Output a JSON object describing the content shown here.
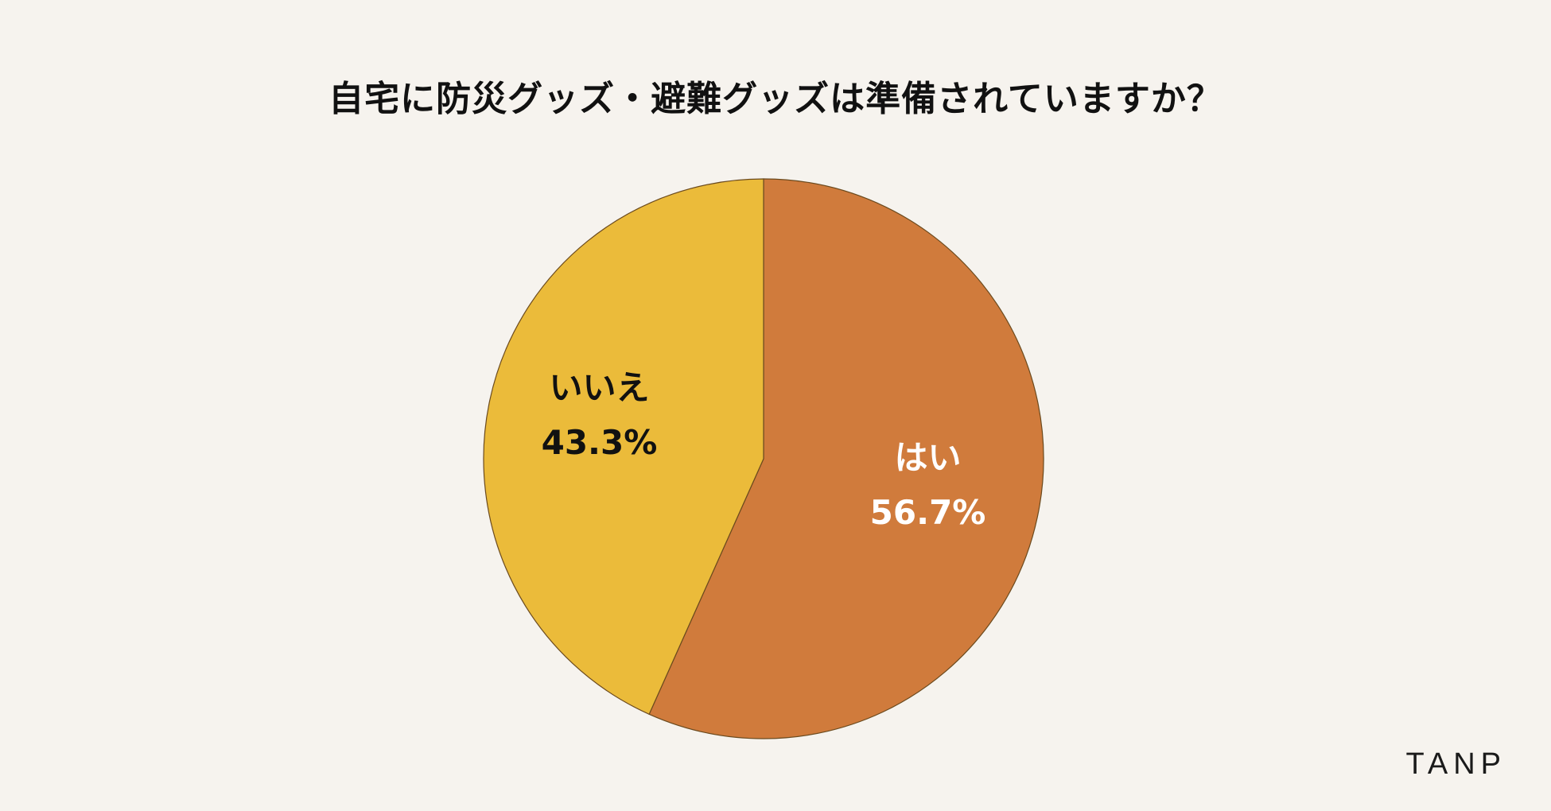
{
  "brand": "TANP",
  "colors": {
    "background": "#F6F3EE",
    "yes": "#D07B3C",
    "no": "#EBBB3A",
    "stroke": "#6B4A1E"
  },
  "chart_data": {
    "type": "pie",
    "title": "自宅に防災グッズ・避難グッズは準備されていますか？",
    "start_angle": "12 o'clock",
    "direction": "clockwise",
    "slices": [
      {
        "label": "はい",
        "value": 56.7,
        "value_label": "56.7%",
        "color": "#D07B3C",
        "label_color": "#FFFFFF"
      },
      {
        "label": "いいえ",
        "value": 43.3,
        "value_label": "43.3%",
        "color": "#EBBB3A",
        "label_color": "#111111"
      }
    ]
  }
}
